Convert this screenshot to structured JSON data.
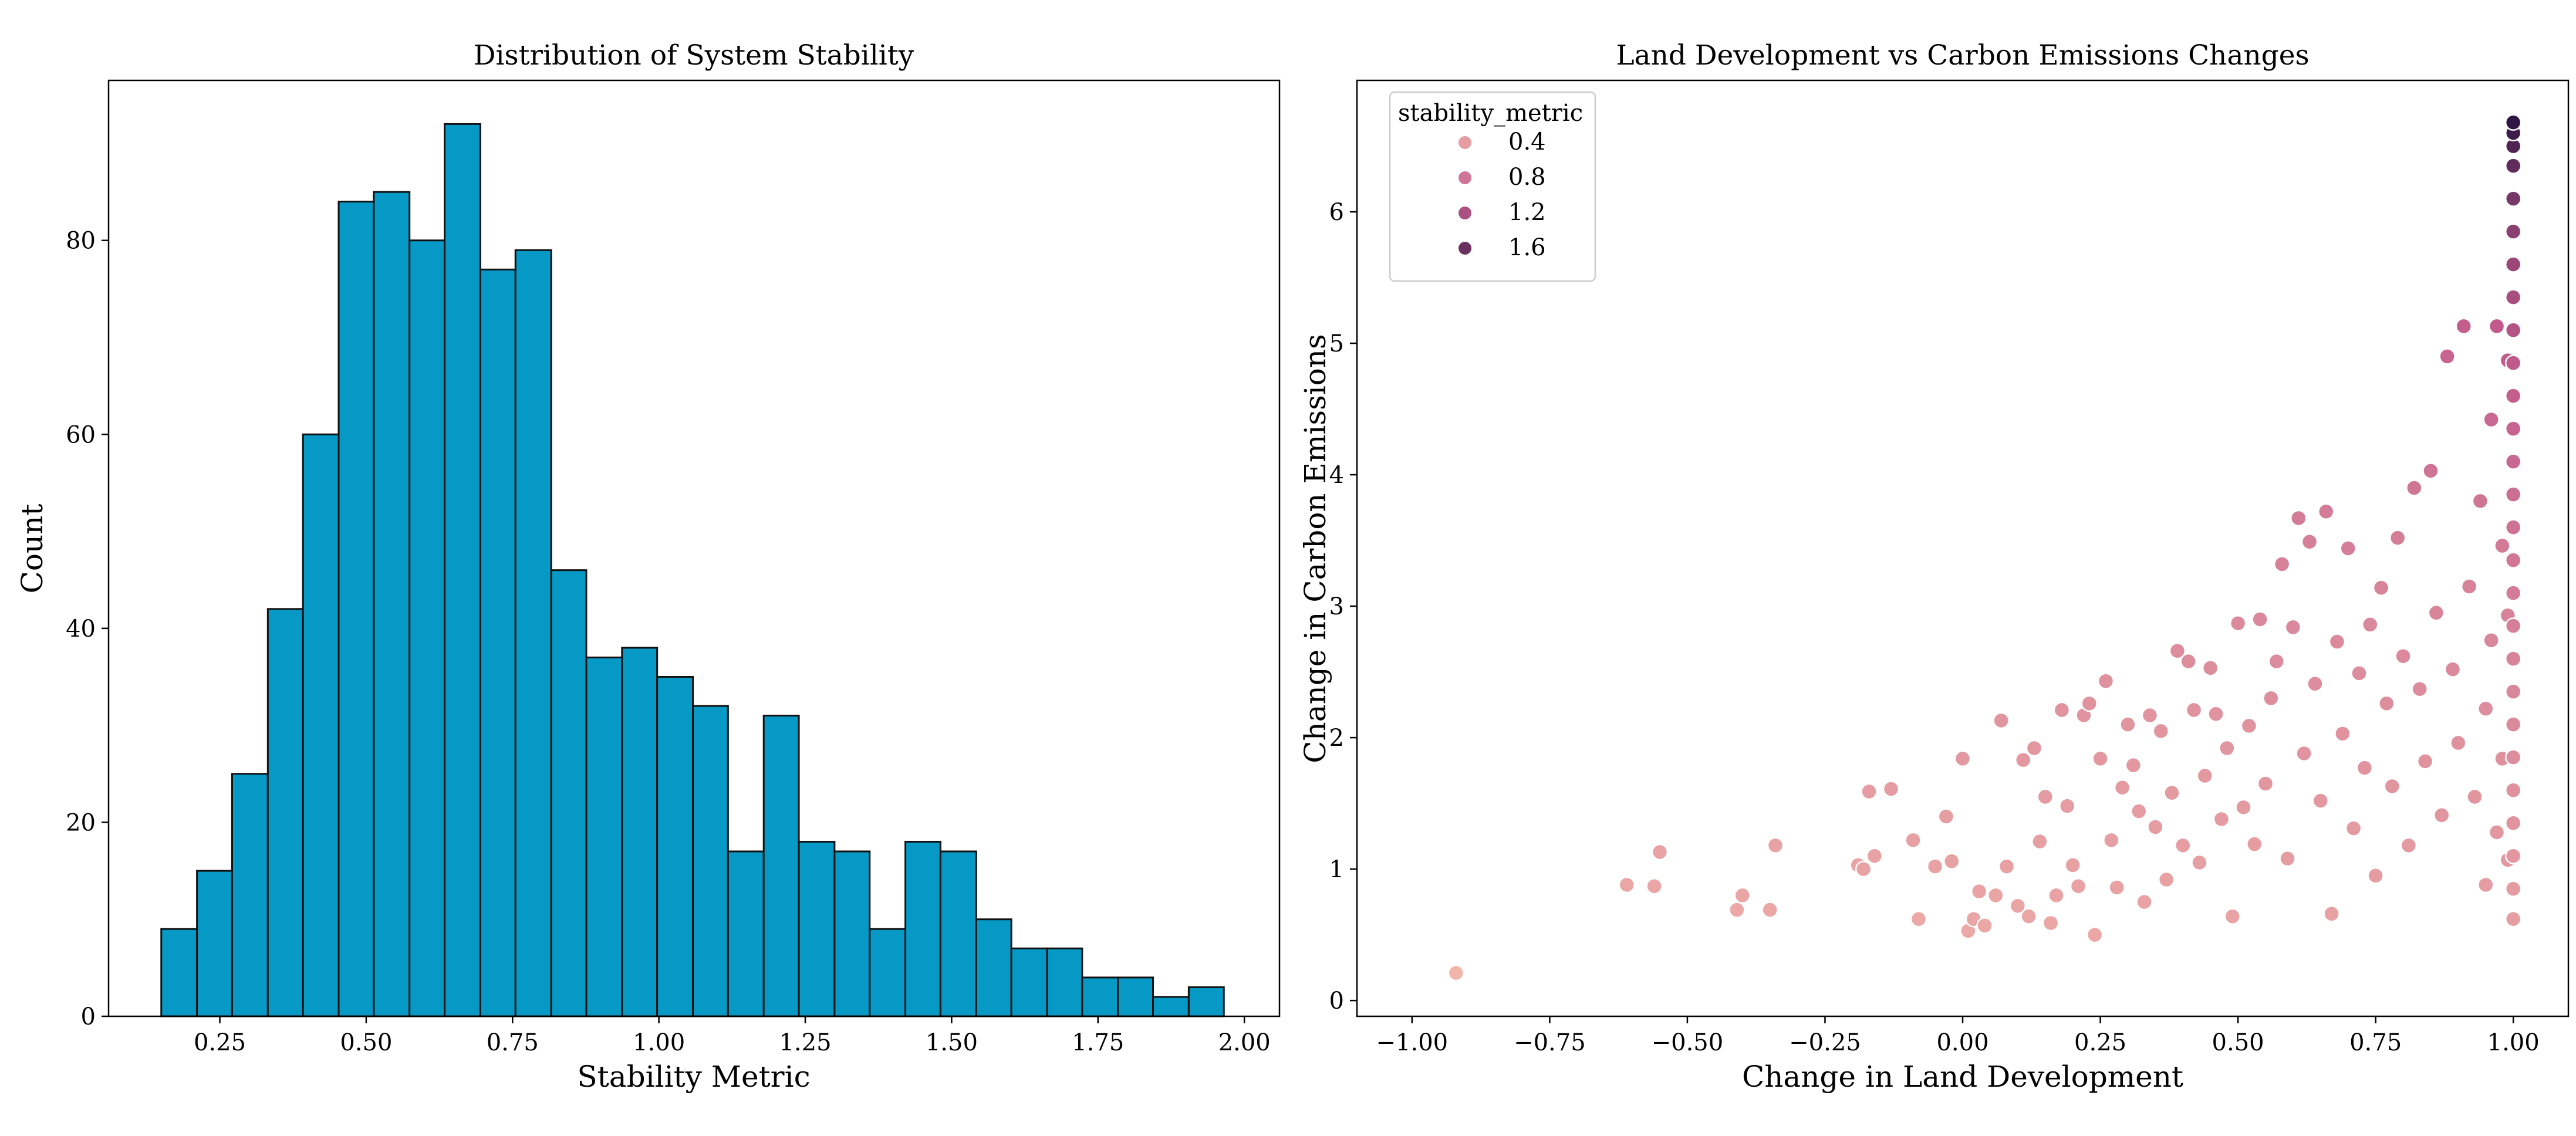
{
  "chart_data": [
    {
      "type": "histogram",
      "title": "Distribution of System Stability",
      "xlabel": "Stability Metric",
      "ylabel": "Count",
      "xlim": [
        0.06,
        2.06
      ],
      "ylim": [
        0,
        96.5
      ],
      "xticks": [
        "0.25",
        "0.50",
        "0.75",
        "1.00",
        "1.25",
        "1.50",
        "1.75",
        "2.00"
      ],
      "yticks": [
        "0",
        "20",
        "40",
        "60",
        "80"
      ],
      "bar_color": "#0699c6",
      "edge_color": "#111111",
      "bins": [
        {
          "x0": 0.15,
          "x1": 0.211,
          "count": 9
        },
        {
          "x0": 0.211,
          "x1": 0.271,
          "count": 15
        },
        {
          "x0": 0.271,
          "x1": 0.332,
          "count": 25
        },
        {
          "x0": 0.332,
          "x1": 0.392,
          "count": 42
        },
        {
          "x0": 0.392,
          "x1": 0.453,
          "count": 60
        },
        {
          "x0": 0.453,
          "x1": 0.513,
          "count": 84
        },
        {
          "x0": 0.513,
          "x1": 0.574,
          "count": 85
        },
        {
          "x0": 0.574,
          "x1": 0.634,
          "count": 80
        },
        {
          "x0": 0.634,
          "x1": 0.695,
          "count": 92
        },
        {
          "x0": 0.695,
          "x1": 0.755,
          "count": 77
        },
        {
          "x0": 0.755,
          "x1": 0.816,
          "count": 79
        },
        {
          "x0": 0.816,
          "x1": 0.876,
          "count": 46
        },
        {
          "x0": 0.876,
          "x1": 0.937,
          "count": 37
        },
        {
          "x0": 0.937,
          "x1": 0.997,
          "count": 38
        },
        {
          "x0": 0.997,
          "x1": 1.058,
          "count": 35
        },
        {
          "x0": 1.058,
          "x1": 1.118,
          "count": 32
        },
        {
          "x0": 1.118,
          "x1": 1.179,
          "count": 17
        },
        {
          "x0": 1.179,
          "x1": 1.239,
          "count": 31
        },
        {
          "x0": 1.239,
          "x1": 1.3,
          "count": 18
        },
        {
          "x0": 1.3,
          "x1": 1.36,
          "count": 17
        },
        {
          "x0": 1.36,
          "x1": 1.421,
          "count": 9
        },
        {
          "x0": 1.421,
          "x1": 1.481,
          "count": 18
        },
        {
          "x0": 1.481,
          "x1": 1.542,
          "count": 17
        },
        {
          "x0": 1.542,
          "x1": 1.602,
          "count": 10
        },
        {
          "x0": 1.602,
          "x1": 1.663,
          "count": 7
        },
        {
          "x0": 1.663,
          "x1": 1.723,
          "count": 7
        },
        {
          "x0": 1.723,
          "x1": 1.784,
          "count": 4
        },
        {
          "x0": 1.784,
          "x1": 1.844,
          "count": 4
        },
        {
          "x0": 1.844,
          "x1": 1.905,
          "count": 2
        },
        {
          "x0": 1.905,
          "x1": 1.965,
          "count": 3
        }
      ]
    },
    {
      "type": "scatter",
      "title": "Land Development vs Carbon Emissions Changes",
      "xlabel": "Change in Land Development",
      "ylabel": "Change in Carbon Emissions",
      "xlim": [
        -1.1,
        1.1
      ],
      "ylim": [
        -0.12,
        7.0
      ],
      "xticks": [
        "−1.00",
        "−0.75",
        "−0.50",
        "−0.25",
        "0.00",
        "0.25",
        "0.50",
        "0.75",
        "1.00"
      ],
      "yticks": [
        "0",
        "1",
        "2",
        "3",
        "4",
        "5",
        "6"
      ],
      "hue": "stability_metric",
      "hue_range": [
        0.15,
        1.97
      ],
      "color_low": "#f2b5aa",
      "color_high": "#2d1442",
      "legend": {
        "title": "stability_metric",
        "location": "upper-left",
        "entries": [
          {
            "label": "0.4",
            "value": 0.4
          },
          {
            "label": "0.8",
            "value": 0.8
          },
          {
            "label": "1.2",
            "value": 1.2
          },
          {
            "label": "1.6",
            "value": 1.6
          }
        ]
      },
      "points": [
        [
          -0.92,
          0.21,
          0.15
        ],
        [
          -0.61,
          0.88,
          0.3
        ],
        [
          -0.56,
          0.87,
          0.31
        ],
        [
          -0.55,
          1.13,
          0.33
        ],
        [
          -0.41,
          0.69,
          0.28
        ],
        [
          -0.4,
          0.8,
          0.3
        ],
        [
          -0.35,
          0.69,
          0.29
        ],
        [
          -0.34,
          1.18,
          0.34
        ],
        [
          -0.19,
          1.03,
          0.33
        ],
        [
          -0.18,
          1.0,
          0.33
        ],
        [
          -0.17,
          1.59,
          0.4
        ],
        [
          -0.16,
          1.1,
          0.34
        ],
        [
          -0.13,
          1.61,
          0.4
        ],
        [
          -0.09,
          1.22,
          0.36
        ],
        [
          -0.08,
          0.62,
          0.28
        ],
        [
          -0.05,
          1.02,
          0.34
        ],
        [
          -0.03,
          1.4,
          0.38
        ],
        [
          -0.02,
          1.06,
          0.35
        ],
        [
          0.0,
          1.84,
          0.43
        ],
        [
          0.01,
          0.53,
          0.28
        ],
        [
          0.02,
          0.62,
          0.3
        ],
        [
          0.03,
          0.83,
          0.33
        ],
        [
          0.04,
          0.57,
          0.29
        ],
        [
          0.06,
          0.8,
          0.32
        ],
        [
          0.07,
          2.13,
          0.47
        ],
        [
          0.08,
          1.02,
          0.35
        ],
        [
          0.1,
          0.72,
          0.31
        ],
        [
          0.11,
          1.83,
          0.44
        ],
        [
          0.12,
          0.64,
          0.31
        ],
        [
          0.13,
          1.92,
          0.45
        ],
        [
          0.14,
          1.21,
          0.37
        ],
        [
          0.15,
          1.55,
          0.41
        ],
        [
          0.16,
          0.59,
          0.3
        ],
        [
          0.17,
          0.8,
          0.33
        ],
        [
          0.18,
          2.21,
          0.49
        ],
        [
          0.19,
          1.48,
          0.4
        ],
        [
          0.2,
          1.03,
          0.35
        ],
        [
          0.21,
          0.87,
          0.34
        ],
        [
          0.22,
          2.17,
          0.48
        ],
        [
          0.23,
          2.26,
          0.49
        ],
        [
          0.24,
          0.5,
          0.29
        ],
        [
          0.25,
          1.84,
          0.44
        ],
        [
          0.26,
          2.43,
          0.51
        ],
        [
          0.27,
          1.22,
          0.37
        ],
        [
          0.28,
          0.86,
          0.34
        ],
        [
          0.29,
          1.62,
          0.42
        ],
        [
          0.3,
          2.1,
          0.47
        ],
        [
          0.31,
          1.79,
          0.44
        ],
        [
          0.32,
          1.44,
          0.4
        ],
        [
          0.33,
          0.75,
          0.33
        ],
        [
          0.34,
          2.17,
          0.48
        ],
        [
          0.35,
          1.32,
          0.39
        ],
        [
          0.36,
          2.05,
          0.47
        ],
        [
          0.37,
          0.92,
          0.35
        ],
        [
          0.38,
          1.58,
          0.42
        ],
        [
          0.39,
          2.66,
          0.55
        ],
        [
          0.4,
          1.18,
          0.38
        ],
        [
          0.41,
          2.58,
          0.54
        ],
        [
          0.42,
          2.21,
          0.5
        ],
        [
          0.43,
          1.05,
          0.37
        ],
        [
          0.44,
          1.71,
          0.44
        ],
        [
          0.45,
          2.53,
          0.54
        ],
        [
          0.46,
          2.18,
          0.5
        ],
        [
          0.47,
          1.38,
          0.41
        ],
        [
          0.48,
          1.92,
          0.47
        ],
        [
          0.49,
          0.64,
          0.33
        ],
        [
          0.5,
          2.87,
          0.59
        ],
        [
          0.51,
          1.47,
          0.42
        ],
        [
          0.52,
          2.09,
          0.49
        ],
        [
          0.53,
          1.19,
          0.39
        ],
        [
          0.54,
          2.9,
          0.6
        ],
        [
          0.55,
          1.65,
          0.45
        ],
        [
          0.56,
          2.3,
          0.53
        ],
        [
          0.57,
          2.58,
          0.56
        ],
        [
          0.58,
          3.32,
          0.67
        ],
        [
          0.59,
          1.08,
          0.39
        ],
        [
          0.6,
          2.84,
          0.6
        ],
        [
          0.61,
          3.67,
          0.73
        ],
        [
          0.62,
          1.88,
          0.48
        ],
        [
          0.63,
          3.49,
          0.7
        ],
        [
          0.64,
          2.41,
          0.55
        ],
        [
          0.65,
          1.52,
          0.44
        ],
        [
          0.66,
          3.72,
          0.74
        ],
        [
          0.67,
          0.66,
          0.35
        ],
        [
          0.68,
          2.73,
          0.59
        ],
        [
          0.69,
          2.03,
          0.5
        ],
        [
          0.7,
          3.44,
          0.71
        ],
        [
          0.71,
          1.31,
          0.42
        ],
        [
          0.72,
          2.49,
          0.56
        ],
        [
          0.73,
          1.77,
          0.48
        ],
        [
          0.74,
          2.86,
          0.61
        ],
        [
          0.75,
          0.95,
          0.39
        ],
        [
          0.76,
          3.14,
          0.66
        ],
        [
          0.77,
          2.26,
          0.54
        ],
        [
          0.78,
          1.63,
          0.47
        ],
        [
          0.79,
          3.52,
          0.72
        ],
        [
          0.8,
          2.62,
          0.59
        ],
        [
          0.81,
          1.18,
          0.42
        ],
        [
          0.82,
          3.9,
          0.79
        ],
        [
          0.83,
          2.37,
          0.56
        ],
        [
          0.84,
          1.82,
          0.49
        ],
        [
          0.85,
          4.03,
          0.82
        ],
        [
          0.86,
          2.95,
          0.64
        ],
        [
          0.87,
          1.41,
          0.45
        ],
        [
          0.88,
          4.9,
          0.98
        ],
        [
          0.89,
          2.52,
          0.58
        ],
        [
          0.9,
          1.96,
          0.51
        ],
        [
          0.91,
          5.13,
          1.03
        ],
        [
          0.92,
          3.15,
          0.67
        ],
        [
          0.93,
          1.55,
          0.47
        ],
        [
          0.94,
          3.8,
          0.79
        ],
        [
          0.95,
          2.22,
          0.55
        ],
        [
          0.95,
          0.88,
          0.4
        ],
        [
          0.96,
          4.42,
          0.92
        ],
        [
          0.96,
          2.74,
          0.62
        ],
        [
          0.97,
          1.28,
          0.45
        ],
        [
          0.97,
          5.13,
          1.06
        ],
        [
          0.98,
          3.46,
          0.75
        ],
        [
          0.98,
          1.84,
          0.51
        ],
        [
          0.99,
          4.87,
          1.02
        ],
        [
          0.99,
          2.93,
          0.65
        ],
        [
          0.99,
          1.07,
          0.43
        ],
        [
          1.0,
          0.62,
          0.38
        ],
        [
          1.0,
          0.85,
          0.41
        ],
        [
          1.0,
          1.1,
          0.44
        ],
        [
          1.0,
          1.35,
          0.48
        ],
        [
          1.0,
          1.6,
          0.51
        ],
        [
          1.0,
          1.85,
          0.54
        ],
        [
          1.0,
          2.1,
          0.58
        ],
        [
          1.0,
          2.35,
          0.62
        ],
        [
          1.0,
          2.6,
          0.66
        ],
        [
          1.0,
          2.85,
          0.7
        ],
        [
          1.0,
          3.1,
          0.74
        ],
        [
          1.0,
          3.35,
          0.78
        ],
        [
          1.0,
          3.6,
          0.82
        ],
        [
          1.0,
          3.85,
          0.87
        ],
        [
          1.0,
          4.1,
          0.92
        ],
        [
          1.0,
          4.35,
          0.97
        ],
        [
          1.0,
          4.6,
          1.02
        ],
        [
          1.0,
          4.85,
          1.08
        ],
        [
          1.0,
          5.1,
          1.15
        ],
        [
          1.0,
          5.35,
          1.22
        ],
        [
          1.0,
          5.6,
          1.3
        ],
        [
          1.0,
          5.85,
          1.4
        ],
        [
          1.0,
          6.1,
          1.52
        ],
        [
          1.0,
          6.35,
          1.66
        ],
        [
          1.0,
          6.5,
          1.76
        ],
        [
          1.0,
          6.6,
          1.86
        ],
        [
          1.0,
          6.68,
          1.95
        ]
      ]
    }
  ]
}
